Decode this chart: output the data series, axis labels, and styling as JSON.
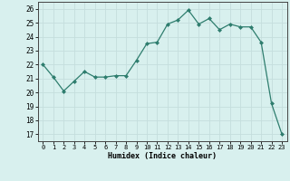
{
  "x": [
    0,
    1,
    2,
    3,
    4,
    5,
    6,
    7,
    8,
    9,
    10,
    11,
    12,
    13,
    14,
    15,
    16,
    17,
    18,
    19,
    20,
    21,
    22,
    23
  ],
  "y": [
    22.0,
    21.1,
    20.1,
    20.8,
    21.5,
    21.1,
    21.1,
    21.2,
    21.2,
    22.3,
    23.5,
    23.6,
    24.9,
    25.2,
    25.9,
    24.9,
    25.3,
    24.5,
    24.9,
    24.7,
    24.7,
    23.6,
    19.2,
    17.0
  ],
  "xlabel": "Humidex (Indice chaleur)",
  "ylabel_ticks": [
    17,
    18,
    19,
    20,
    21,
    22,
    23,
    24,
    25,
    26
  ],
  "ylim": [
    16.5,
    26.5
  ],
  "xlim": [
    -0.5,
    23.5
  ],
  "line_color": "#2e7d6e",
  "marker_color": "#2e7d6e",
  "bg_color": "#d8f0ee",
  "grid_color": "#c4dedd"
}
